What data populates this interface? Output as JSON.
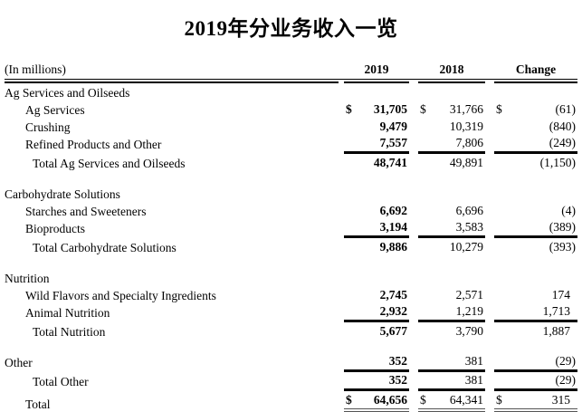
{
  "title": "2019年分业务收入一览",
  "table": {
    "unit_label": "(In millions)",
    "columns": [
      "2019",
      "2018",
      "Change"
    ],
    "rows": [
      {
        "label": "Ag Services and Oilseeds",
        "indent": 0
      },
      {
        "label": "Ag Services",
        "indent": 1,
        "d2019": "$",
        "v2019": "31,705",
        "d2018": "$",
        "v2018": "31,766",
        "dchange": "$",
        "change": "(61)"
      },
      {
        "label": "Crushing",
        "indent": 1,
        "v2019": "9,479",
        "v2018": "10,319",
        "change": "(840)"
      },
      {
        "label": "Refined Products and Other",
        "indent": 1,
        "v2019": "7,557",
        "v2018": "7,806",
        "change": "(249)",
        "rule_below": true
      },
      {
        "label": "Total Ag Services and Oilseeds",
        "indent": 2,
        "v2019": "48,741",
        "v2018": "49,891",
        "change": "(1,150)",
        "rule_above": true
      },
      {
        "blank": true
      },
      {
        "label": "Carbohydrate Solutions",
        "indent": 0
      },
      {
        "label": "Starches and Sweeteners",
        "indent": 1,
        "v2019": "6,692",
        "v2018": "6,696",
        "change": "(4)"
      },
      {
        "label": "Bioproducts",
        "indent": 1,
        "v2019": "3,194",
        "v2018": "3,583",
        "change": "(389)",
        "rule_below": true
      },
      {
        "label": "Total Carbohydrate Solutions",
        "indent": 2,
        "v2019": "9,886",
        "v2018": "10,279",
        "change": "(393)",
        "rule_above": true
      },
      {
        "blank": true
      },
      {
        "label": "Nutrition",
        "indent": 0
      },
      {
        "label": "Wild Flavors and Specialty Ingredients",
        "indent": 1,
        "v2019": "2,745",
        "v2018": "2,571",
        "change": "174"
      },
      {
        "label": "Animal Nutrition",
        "indent": 1,
        "v2019": "2,932",
        "v2018": "1,219",
        "change": "1,713",
        "rule_below": true
      },
      {
        "label": "Total Nutrition",
        "indent": 2,
        "v2019": "5,677",
        "v2018": "3,790",
        "change": "1,887",
        "rule_above": true
      },
      {
        "blank": true
      },
      {
        "label": "Other",
        "indent": 0,
        "v2019": "352",
        "v2018": "381",
        "change": "(29)",
        "rule_below": true
      },
      {
        "label": "Total Other",
        "indent": 2,
        "v2019": "352",
        "v2018": "381",
        "change": "(29)",
        "rule_above": true,
        "rule_below": true
      },
      {
        "label": "Total",
        "indent": 1,
        "d2019": "$",
        "v2019": "64,656",
        "d2018": "$",
        "v2018": "64,341",
        "dchange": "$",
        "change": "315",
        "rule_above": true,
        "double_below": true
      }
    ]
  }
}
